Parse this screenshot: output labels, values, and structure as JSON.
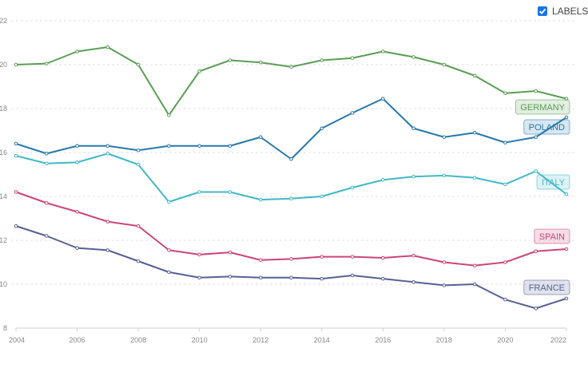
{
  "toggle": {
    "label": "LABELS",
    "checked": true
  },
  "chart_data": {
    "type": "line",
    "x": [
      2004,
      2005,
      2006,
      2007,
      2008,
      2009,
      2010,
      2011,
      2012,
      2013,
      2014,
      2015,
      2016,
      2017,
      2018,
      2019,
      2020,
      2021,
      2022
    ],
    "xlim": [
      2004,
      2022
    ],
    "ylim": [
      8,
      22
    ],
    "x_ticks": [
      2004,
      2006,
      2008,
      2010,
      2012,
      2014,
      2016,
      2018,
      2020,
      2022
    ],
    "y_ticks": [
      8,
      10,
      12,
      14,
      16,
      18,
      20,
      22
    ],
    "grid": "horizontal dashed",
    "series": [
      {
        "name": "GERMANY",
        "color": "#5a9e55",
        "values": [
          20.0,
          20.05,
          20.6,
          20.8,
          20.0,
          17.7,
          19.7,
          20.2,
          20.1,
          19.9,
          20.2,
          20.3,
          20.6,
          20.35,
          20.0,
          19.5,
          18.7,
          18.8,
          18.45
        ]
      },
      {
        "name": "POLAND",
        "color": "#2878ad",
        "values": [
          16.4,
          15.95,
          16.3,
          16.3,
          16.1,
          16.3,
          16.3,
          16.3,
          16.7,
          15.7,
          17.1,
          17.8,
          18.45,
          17.1,
          16.7,
          16.9,
          16.45,
          16.7,
          17.6
        ]
      },
      {
        "name": "ITALY",
        "color": "#40b9c6",
        "values": [
          15.85,
          15.5,
          15.55,
          15.95,
          15.45,
          13.75,
          14.2,
          14.2,
          13.85,
          13.9,
          14.0,
          14.4,
          14.75,
          14.9,
          14.95,
          14.85,
          14.55,
          15.15,
          14.1
        ]
      },
      {
        "name": "SPAIN",
        "color": "#cc4477",
        "values": [
          14.2,
          13.7,
          13.3,
          12.85,
          12.65,
          11.55,
          11.35,
          11.45,
          11.1,
          11.15,
          11.25,
          11.25,
          11.2,
          11.3,
          11.0,
          10.85,
          11.0,
          11.5,
          11.6
        ]
      },
      {
        "name": "FRANCE",
        "color": "#556196",
        "values": [
          12.65,
          12.2,
          11.65,
          11.55,
          11.05,
          10.55,
          10.3,
          10.35,
          10.3,
          10.3,
          10.25,
          10.4,
          10.25,
          10.1,
          9.95,
          10.0,
          9.3,
          8.9,
          9.35
        ]
      }
    ]
  }
}
